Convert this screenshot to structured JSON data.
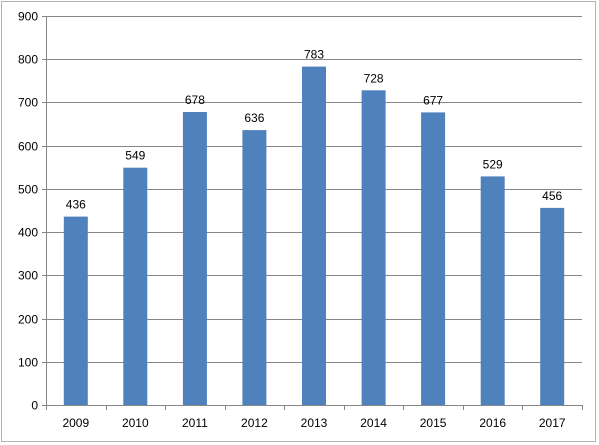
{
  "chart_data": {
    "type": "bar",
    "title": "",
    "xlabel": "",
    "ylabel": "",
    "categories": [
      "2009",
      "2010",
      "2011",
      "2012",
      "2013",
      "2014",
      "2015",
      "2016",
      "2017"
    ],
    "series": [
      {
        "values": [
          436,
          549,
          678,
          636,
          783,
          728,
          677,
          529,
          456
        ],
        "color": "#4f81bd"
      }
    ],
    "ylim": [
      0,
      900
    ],
    "yticks": [
      0,
      100,
      200,
      300,
      400,
      500,
      600,
      700,
      800,
      900
    ],
    "grid": true,
    "legend": "none",
    "data_labels": true,
    "colors": {
      "bar": "#4f81bd",
      "grid": "#868686",
      "axis": "#868686",
      "frame": "#b3b3b3"
    }
  }
}
